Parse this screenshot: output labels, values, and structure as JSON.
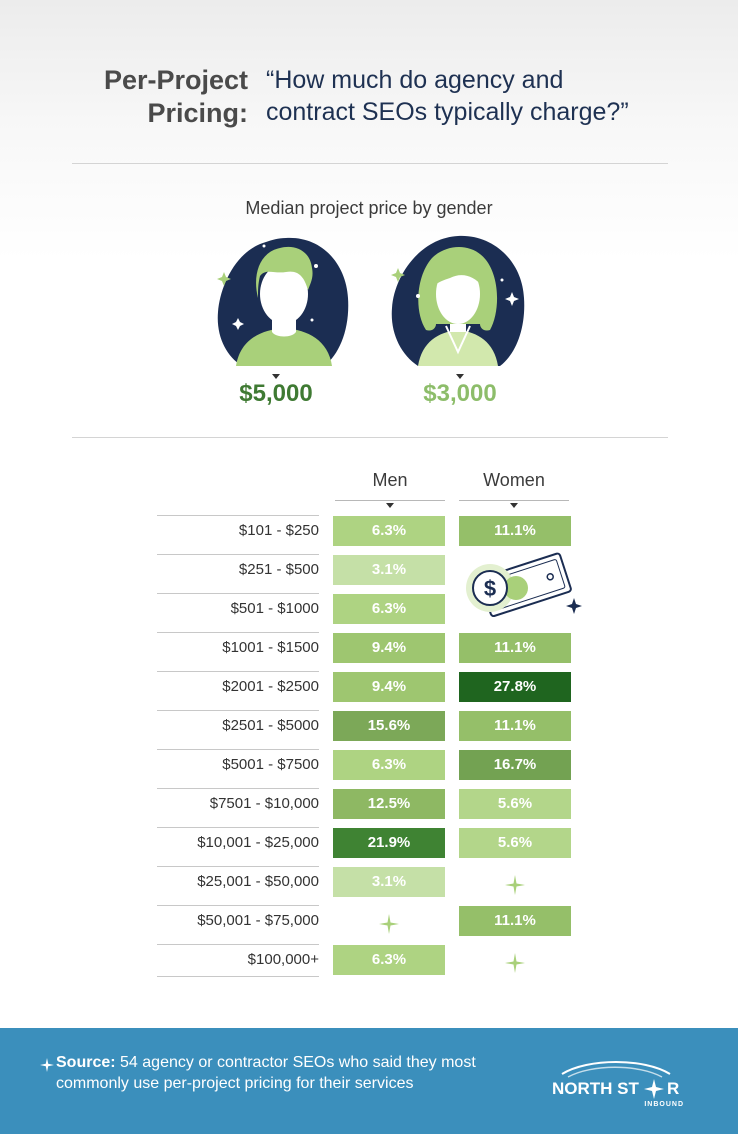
{
  "header": {
    "title_line1": "Per-Project",
    "title_line2": "Pricing:",
    "question_line1": "“How much do agency and",
    "question_line2": "contract SEOs typically charge?”"
  },
  "median_section": {
    "subtitle": "Median project price by gender",
    "men_price": "$5,000",
    "women_price": "$3,000",
    "men_price_color": "#3f7a33",
    "women_price_color": "#8dbd6a",
    "avatar_bg_color": "#1b2d52",
    "avatar_light_color": "#a9d07a"
  },
  "chart_data": {
    "type": "table",
    "columns": [
      "Men",
      "Women"
    ],
    "categories": [
      "$101 - $250",
      "$251 - $500",
      "$501 - $1000",
      "$1001 - $1500",
      "$2001 - $2500",
      "$2501 - $5000",
      "$5001 - $7500",
      "$7501 - $10,000",
      "$10,001 - $25,000",
      "$25,001 - $50,000",
      "$50,001 - $75,000",
      "$100,000+"
    ],
    "series": [
      {
        "name": "Men",
        "values": [
          6.3,
          3.1,
          6.3,
          9.4,
          9.4,
          15.6,
          6.3,
          12.5,
          21.9,
          3.1,
          null,
          6.3
        ]
      },
      {
        "name": "Women",
        "values": [
          11.1,
          null,
          null,
          11.1,
          27.8,
          11.1,
          16.7,
          5.6,
          5.6,
          null,
          11.1,
          null
        ]
      }
    ],
    "cells": {
      "men": [
        "6.3%",
        "3.1%",
        "6.3%",
        "9.4%",
        "9.4%",
        "15.6%",
        "6.3%",
        "12.5%",
        "21.9%",
        "3.1%",
        "",
        "6.3%"
      ],
      "women": [
        "11.1%",
        "",
        "",
        "11.1%",
        "27.8%",
        "11.1%",
        "16.7%",
        "5.6%",
        "5.6%",
        "",
        "11.1%",
        ""
      ]
    },
    "value_unit": "%"
  },
  "footer": {
    "source_label": "Source:",
    "source_text": "54 agency or contractor SEOs who said they most commonly use per-project pricing for their services",
    "logo_text_main": "NORTH ST",
    "logo_text_end": "R",
    "logo_subtext": "INBOUND",
    "background_color": "#3b8fbc"
  },
  "icons": [
    "man-avatar-icon",
    "woman-avatar-icon",
    "money-bill-icon",
    "sparkle-icon",
    "north-star-logo"
  ]
}
